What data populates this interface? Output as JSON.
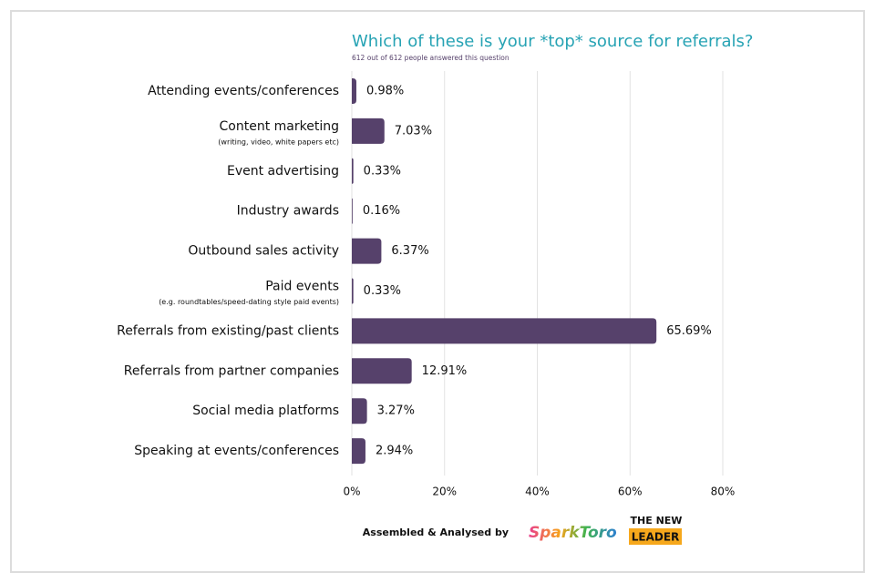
{
  "chart_data": {
    "type": "hbar",
    "title": "Which of these is your *top* source for referrals?",
    "subtitle": "612 out of 612 people answered this question",
    "categories": [
      "Attending events/conferences",
      "Content marketing",
      "Event advertising",
      "Industry awards",
      "Outbound sales activity",
      "Paid events",
      "Referrals from existing/past clients",
      "Referrals from partner companies",
      "Social media platforms",
      "Speaking at events/conferences"
    ],
    "category_notes": [
      null,
      "(writing, video, white papers etc)",
      null,
      null,
      null,
      "(e.g. roundtables/speed-dating style paid events)",
      null,
      null,
      null,
      null
    ],
    "values": [
      0.98,
      7.03,
      0.33,
      0.16,
      6.37,
      0.33,
      65.69,
      12.91,
      3.27,
      2.94
    ],
    "value_labels": [
      "0.98%",
      "7.03%",
      "0.33%",
      "0.16%",
      "6.37%",
      "0.33%",
      "65.69%",
      "12.91%",
      "3.27%",
      "2.94%"
    ],
    "color": "#56416b",
    "xlim": [
      0,
      80
    ],
    "xticks": [
      {
        "value": 0,
        "label": "0%"
      },
      {
        "value": 20,
        "label": "20%"
      },
      {
        "value": 40,
        "label": "40%"
      },
      {
        "value": 60,
        "label": "60%"
      },
      {
        "value": 80,
        "label": "80%"
      }
    ],
    "grid": true
  },
  "footer": {
    "credit": "Assembled & Analysed by",
    "brand": "SparkToro",
    "partner_line1": "THE NEW",
    "partner_line2": "LEADER"
  }
}
